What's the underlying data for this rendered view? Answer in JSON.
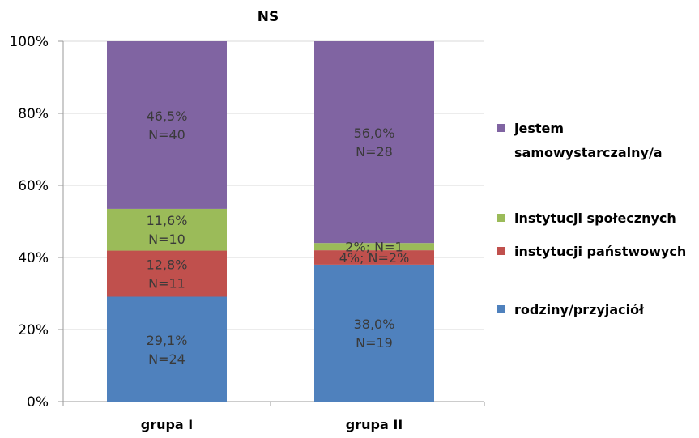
{
  "chart_data": {
    "type": "bar",
    "stacked": true,
    "title": "NS",
    "categories": [
      "grupa I",
      "grupa II"
    ],
    "ylim": [
      0,
      100
    ],
    "yticks": [
      "0%",
      "20%",
      "40%",
      "60%",
      "80%",
      "100%"
    ],
    "grid": true,
    "legend_position": "right",
    "series": [
      {
        "name": "rodziny/przyjaciół",
        "color": "#4f81bd",
        "values": [
          29.1,
          38.0
        ],
        "labels": [
          [
            "29,1%",
            "N=24"
          ],
          [
            "38,0%",
            "N=19"
          ]
        ]
      },
      {
        "name": "instytucji państwowych",
        "color": "#c0504d",
        "values": [
          12.8,
          4.0
        ],
        "labels": [
          [
            "12,8%",
            "N=11"
          ],
          [
            "4%; N=2%"
          ]
        ]
      },
      {
        "name": "instytucji społecznych",
        "color": "#9bbb59",
        "values": [
          11.6,
          2.0
        ],
        "labels": [
          [
            "11,6%",
            "N=10"
          ],
          [
            "2%; N=1"
          ]
        ]
      },
      {
        "name": "jestem samowystarczalny/a",
        "name_lines": [
          "jestem",
          "samowystarczalny/a"
        ],
        "color": "#8064a2",
        "values": [
          46.5,
          56.0
        ],
        "labels": [
          [
            "46,5%",
            "N=40"
          ],
          [
            "56,0%",
            "N=28"
          ]
        ]
      }
    ]
  }
}
